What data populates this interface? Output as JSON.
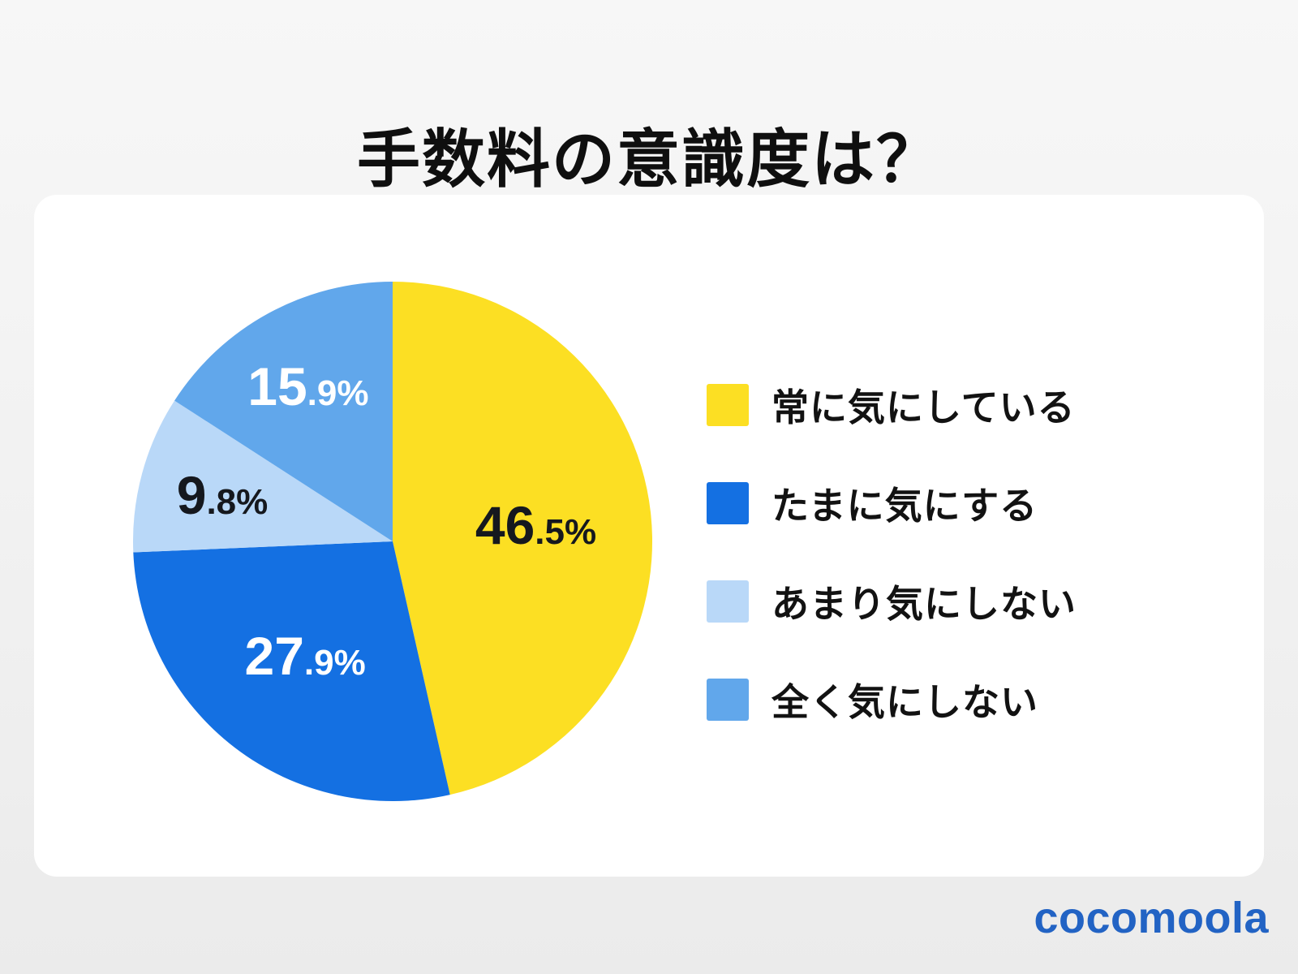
{
  "title": "手数料の意識度は？",
  "brand": {
    "name": "cocomoola",
    "color": "#2263c4"
  },
  "chart_data": {
    "type": "pie",
    "title": "手数料の意識度は？",
    "start_angle_deg": 0,
    "direction": "clockwise",
    "legend_position": "right",
    "slices": [
      {
        "label": "常に気にしている",
        "value": 46.5,
        "color": "#fcdf23",
        "text_color": "#15181e"
      },
      {
        "label": "たまに気にする",
        "value": 27.9,
        "color": "#1470e2",
        "text_color": "#ffffff"
      },
      {
        "label": "あまり気にしない",
        "value": 9.8,
        "color": "#b9d8f8",
        "text_color": "#15181e"
      },
      {
        "label": "全く気にしない",
        "value": 15.9,
        "color": "#61a7eb",
        "text_color": "#ffffff"
      }
    ]
  }
}
